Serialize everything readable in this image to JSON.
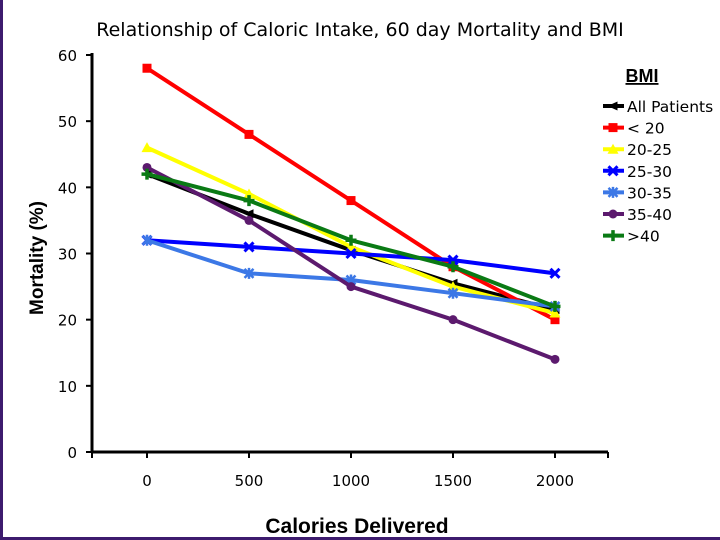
{
  "chart_data": {
    "type": "line",
    "title": "Relationship of Caloric Intake, 60 day Mortality and BMI",
    "xlabel": "Calories Delivered",
    "ylabel": "Mortality (%)",
    "x": [
      0,
      500,
      1000,
      1500,
      2000
    ],
    "x_tick_labels": [
      "0",
      "500",
      "1000",
      "1500",
      "2000"
    ],
    "y_ticks": [
      0,
      10,
      20,
      30,
      40,
      50,
      60
    ],
    "y_tick_labels": [
      "0",
      "10",
      "20",
      "30",
      "40",
      "50",
      "60"
    ],
    "ylim": [
      0,
      60
    ],
    "legend_title": "BMI",
    "legend_position": "right",
    "series": [
      {
        "name": "All Patients",
        "color": "#000000",
        "marker": "arrow",
        "values": [
          42,
          36,
          30.5,
          25.5,
          21.5
        ]
      },
      {
        "name": "< 20",
        "color": "#ff0000",
        "marker": "square",
        "values": [
          58,
          48,
          38,
          28,
          20
        ]
      },
      {
        "name": "20-25",
        "color": "#ffff00",
        "marker": "triangle",
        "values": [
          46,
          39,
          31,
          25,
          21
        ]
      },
      {
        "name": "25-30",
        "color": "#0000ff",
        "marker": "x",
        "values": [
          32,
          31,
          30,
          29,
          27
        ]
      },
      {
        "name": "30-35",
        "color": "#3c78e6",
        "marker": "star",
        "values": [
          32,
          27,
          26,
          24,
          22
        ]
      },
      {
        "name": "35-40",
        "color": "#5c1a6e",
        "marker": "circle",
        "values": [
          43,
          35,
          25,
          20,
          14
        ]
      },
      {
        "name": ">40",
        "color": "#0a7a14",
        "marker": "cross",
        "values": [
          42,
          38,
          32,
          28,
          22
        ]
      }
    ]
  }
}
